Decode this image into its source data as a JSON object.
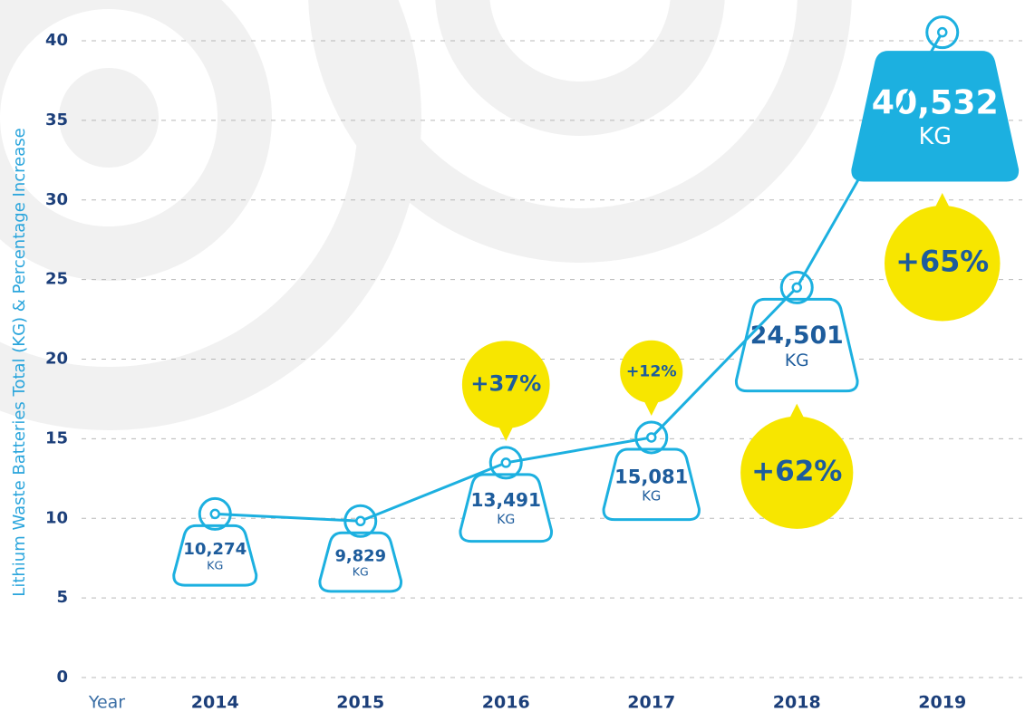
{
  "chart_data": {
    "type": "line",
    "y_label": "Lithium Waste Batteries Total (KG) & Percentage Increase",
    "x_label": "Year",
    "categories": [
      "2014",
      "2015",
      "2016",
      "2017",
      "2018",
      "2019"
    ],
    "values": [
      10.274,
      9.829,
      13.491,
      15.081,
      24.501,
      40.532
    ],
    "value_labels": [
      "10,274",
      "9,829",
      "13,491",
      "15,081",
      "24,501",
      "40,532"
    ],
    "unit_label": "KG",
    "percent_increase": [
      null,
      null,
      37,
      12,
      62,
      65
    ],
    "percent_labels": [
      null,
      null,
      "+37%",
      "+12%",
      "+62%",
      "+65%"
    ],
    "ylim": [
      0,
      40
    ],
    "yticks": [
      0,
      5,
      10,
      15,
      20,
      25,
      30,
      35,
      40
    ],
    "grid": true,
    "color": "#1cb0e0",
    "bubble_color": "#f7e600"
  }
}
